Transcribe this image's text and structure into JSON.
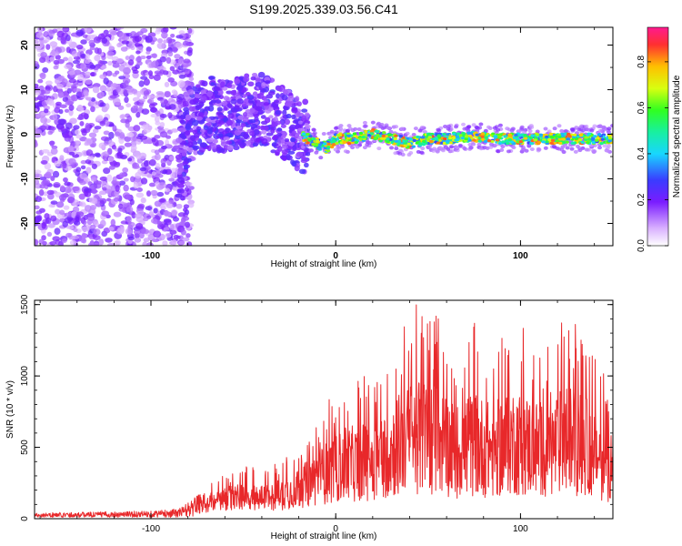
{
  "title": "S199.2025.339.03.56.C41",
  "chart_data": [
    {
      "type": "heatmap",
      "xlabel": "Height of straight line (km)",
      "ylabel": "Frequency (Hz)",
      "xlim": [
        -163,
        150
      ],
      "ylim": [
        -25,
        24
      ],
      "xticks": [
        -100,
        0,
        100
      ],
      "xtick_labels": [
        "-100",
        "0",
        "100"
      ],
      "yticks": [
        -20,
        -10,
        0,
        10,
        20
      ],
      "ytick_labels": [
        "-20",
        "-10",
        "0",
        "10",
        "20"
      ],
      "ridge": {
        "x": [
          -163,
          -140,
          -120,
          -100,
          -85,
          -80,
          -70,
          -60,
          -50,
          -40,
          -30,
          -20,
          -10,
          -5,
          0,
          10,
          20,
          30,
          40,
          50,
          60,
          70,
          80,
          90,
          100,
          110,
          120,
          130,
          140,
          150
        ],
        "y": [
          0,
          0,
          0,
          -5,
          -7,
          1,
          5,
          4,
          5,
          6,
          3,
          0,
          -2,
          -3,
          -1,
          -1,
          0,
          -1,
          -2,
          -1,
          -1,
          -0.5,
          -0.5,
          -1,
          -1,
          -1,
          -1,
          -1,
          -1,
          -1
        ]
      },
      "colorbar": {
        "label": "Normalized spectral amplitude",
        "range": [
          0.0,
          0.95
        ],
        "ticks": [
          0.0,
          0.2,
          0.4,
          0.6,
          0.8
        ],
        "tick_labels": [
          "0.0",
          "0.2",
          "0.4",
          "0.6",
          "0.8"
        ]
      }
    },
    {
      "type": "line",
      "xlabel": "Height of straight line (km)",
      "ylabel": "SNR (10 * v/v)",
      "xlim": [
        -163,
        150
      ],
      "ylim": [
        0,
        1530
      ],
      "xticks": [
        -100,
        0,
        100
      ],
      "xtick_labels": [
        "-100",
        "0",
        "100"
      ],
      "yticks": [
        0,
        500,
        1000,
        1500
      ],
      "ytick_labels": [
        "0",
        "500",
        "1000",
        "1500"
      ],
      "series": [
        {
          "name": "SNR",
          "color": "#e8282a",
          "envelope_x": [
            -163,
            -100,
            -85,
            -75,
            -65,
            -55,
            -45,
            -35,
            -25,
            -15,
            -5,
            5,
            15,
            25,
            35,
            45,
            55,
            65,
            75,
            85,
            95,
            105,
            115,
            125,
            135,
            150
          ],
          "envelope_y": [
            30,
            45,
            60,
            150,
            250,
            350,
            350,
            350,
            450,
            600,
            800,
            950,
            1000,
            1100,
            1350,
            1500,
            1450,
            1200,
            1350,
            1200,
            1400,
            1300,
            1200,
            1450,
            1300,
            900
          ]
        }
      ]
    }
  ],
  "colors": {
    "line": "#e8282a",
    "axis": "#000000"
  }
}
